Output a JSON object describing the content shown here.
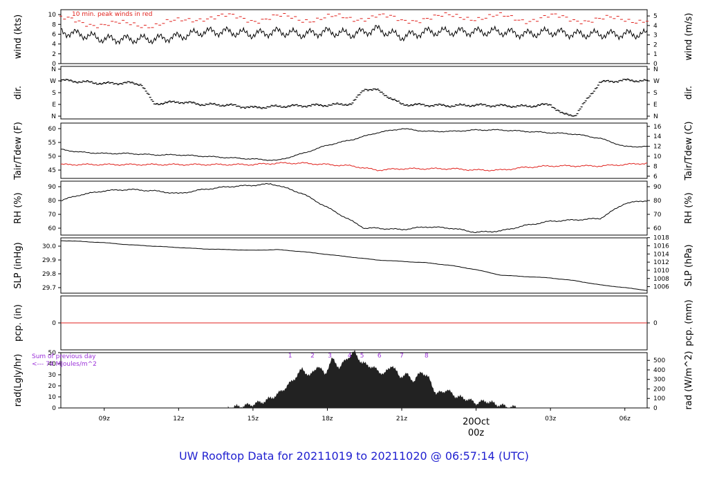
{
  "footer_title": "UW Rooftop Data for 20211019  to  20211020 @ 06:57:14  (UTC)",
  "colors": {
    "line": "#000000",
    "red": "#e0211c",
    "purple": "#9b30d9",
    "title": "#1f1fd0",
    "fill": "#222222"
  },
  "time_axis": {
    "ticks": [
      "09z",
      "12z",
      "15z",
      "18z",
      "21z",
      "00z",
      "03z",
      "06z"
    ],
    "date_label": "20Oct",
    "date_sub": "00z"
  },
  "chart_data": [
    {
      "id": "wind",
      "type": "line",
      "ylabel_left": "wind (kts)",
      "ylabel_right": "wind (m/s)",
      "ylim": [
        0,
        11
      ],
      "ticks_left": [
        0,
        2,
        4,
        6,
        8,
        10
      ],
      "ticks_right": [
        0,
        1,
        2,
        3,
        4,
        5
      ],
      "annotation": "10 min. peak winds in red",
      "series": [
        {
          "x": [
            7.25,
            8,
            9,
            10,
            11,
            12,
            13,
            14,
            15,
            16,
            17,
            18,
            19,
            20,
            21,
            22,
            23,
            24,
            25,
            26,
            27,
            28,
            29,
            30.9
          ],
          "y": [
            6.5,
            6.0,
            5.0,
            5.0,
            5.0,
            5.5,
            6.5,
            6.5,
            6.0,
            6.5,
            6.0,
            6.5,
            6.0,
            7.0,
            5.5,
            6.5,
            6.5,
            6.5,
            6.5,
            6.0,
            6.5,
            6.0,
            6.0,
            6.0
          ]
        },
        {
          "x": [
            7.25,
            8,
            9,
            10,
            11,
            12,
            13,
            14,
            15,
            16,
            17,
            18,
            19,
            20,
            21,
            22,
            23,
            24,
            25,
            26,
            27,
            28,
            29,
            30.9
          ],
          "y": [
            9.0,
            8.5,
            8.0,
            8.0,
            8.0,
            8.5,
            9.5,
            9.5,
            9.0,
            9.5,
            9.0,
            9.5,
            9.0,
            10.0,
            8.5,
            9.5,
            9.5,
            9.5,
            9.5,
            9.0,
            9.5,
            9.0,
            9.0,
            9.0
          ]
        }
      ]
    },
    {
      "id": "dir",
      "type": "scatter",
      "ylabel_left": "dir.",
      "ylabel_right": "dir.",
      "ylim": [
        0,
        360
      ],
      "ticks_left": [
        "N",
        "E",
        "S",
        "W",
        "N"
      ],
      "ticks_right": [
        "N",
        "E",
        "S",
        "W",
        "N"
      ],
      "series": [
        {
          "x": [
            7.25,
            8,
            9,
            10,
            10.5,
            11,
            12,
            13,
            14,
            15,
            16,
            17,
            18,
            19,
            19.5,
            20,
            21,
            22,
            23,
            24,
            25,
            26,
            27,
            27.5,
            28,
            29,
            30,
            30.9
          ],
          "y": [
            275,
            265,
            250,
            255,
            245,
            95,
            110,
            90,
            85,
            65,
            75,
            80,
            85,
            95,
            210,
            200,
            90,
            85,
            80,
            85,
            80,
            75,
            90,
            15,
            5,
            260,
            275,
            270
          ]
        }
      ]
    },
    {
      "id": "temp",
      "type": "line",
      "ylabel_left": "Tair/Tdew (F)",
      "ylabel_right": "Tair/Tdew (C)",
      "ylim": [
        42,
        62
      ],
      "ticks_left": [
        45,
        50,
        55,
        60
      ],
      "ticks_right": [
        6,
        8,
        10,
        12,
        14,
        16
      ],
      "series": [
        {
          "x": [
            7.25,
            8,
            9,
            10,
            11,
            12,
            13,
            14,
            15,
            16,
            17,
            18,
            19,
            20,
            21,
            22,
            23,
            24,
            25,
            26,
            27,
            28,
            29,
            30,
            30.9
          ],
          "y": [
            52.5,
            51.5,
            51,
            51,
            50.5,
            50.5,
            50,
            49.5,
            49,
            48.5,
            51,
            54,
            56,
            58.5,
            60,
            59,
            59,
            59.5,
            59.5,
            59,
            58.5,
            58,
            56.5,
            53.5,
            53.5
          ]
        },
        {
          "x": [
            7.25,
            8,
            9,
            10,
            11,
            12,
            13,
            14,
            15,
            16,
            17,
            18,
            19,
            20,
            21,
            22,
            23,
            24,
            25,
            26,
            27,
            28,
            29,
            30,
            30.9
          ],
          "y": [
            47,
            47,
            47,
            47,
            47,
            47,
            47,
            47,
            47,
            47.5,
            47.5,
            47,
            46.5,
            45,
            45.5,
            45.5,
            45.5,
            45,
            45,
            46,
            46.5,
            46.5,
            46.5,
            47,
            47.5
          ]
        }
      ]
    },
    {
      "id": "rh",
      "type": "line",
      "ylabel_left": "RH (%)",
      "ylabel_right": "RH (%)",
      "ylim": [
        55,
        94
      ],
      "ticks_left": [
        60,
        70,
        80,
        90
      ],
      "ticks_right": [
        60,
        70,
        80,
        90
      ],
      "series": [
        {
          "x": [
            7.25,
            8,
            9,
            10,
            11,
            12,
            13,
            14,
            15,
            15.7,
            16,
            17,
            18,
            19,
            19.5,
            20,
            21,
            22,
            23,
            24,
            25,
            26,
            27,
            28,
            29,
            30,
            30.9
          ],
          "y": [
            80,
            84,
            87,
            88,
            87,
            85,
            88,
            90,
            91,
            92,
            91,
            85,
            75,
            65,
            60,
            60,
            59,
            61,
            60,
            57,
            58,
            62,
            65,
            66,
            67,
            78,
            80
          ]
        }
      ]
    },
    {
      "id": "slp",
      "type": "line",
      "ylabel_left": "SLP (inHg)",
      "ylabel_right": "SLP (hPa)",
      "ylim": [
        29.66,
        30.06
      ],
      "ticks_left": [
        "29.7",
        "29.8",
        "29.9",
        "30.0"
      ],
      "ticks_right": [
        1006,
        1008,
        1010,
        1012,
        1014,
        1016,
        1018
      ],
      "series": [
        {
          "x": [
            7.25,
            8,
            9,
            10,
            11,
            12,
            13,
            14,
            15,
            16,
            17,
            18,
            19,
            20,
            21,
            22,
            23,
            24,
            25,
            26,
            27,
            28,
            29,
            30,
            30.9
          ],
          "y": [
            30.04,
            30.035,
            30.025,
            30.01,
            30.0,
            29.99,
            29.98,
            29.975,
            29.97,
            29.975,
            29.96,
            29.94,
            29.92,
            29.9,
            29.89,
            29.88,
            29.86,
            29.83,
            29.79,
            29.78,
            29.77,
            29.75,
            29.72,
            29.7,
            29.68
          ]
        }
      ]
    },
    {
      "id": "pcp",
      "type": "line",
      "ylabel_left": "pcp. (in)",
      "ylabel_right": "pcp. (mm)",
      "ticks_left": [
        0
      ],
      "ticks_right": [
        0
      ],
      "series": [
        {
          "x": [
            7.25,
            30.9
          ],
          "y": [
            0,
            0
          ]
        }
      ]
    },
    {
      "id": "rad",
      "type": "area",
      "ylabel_left": "rad(Lgly/hr)",
      "ylabel_right": "rad (W/m^2)",
      "ylim": [
        0,
        50
      ],
      "ticks_left": [
        0,
        10,
        20,
        30,
        40,
        50
      ],
      "ticks_right": [
        0,
        100,
        200,
        300,
        400,
        500
      ],
      "annotation_lines": [
        "Sum of previous day",
        "<--- 74 MJoules/m^2"
      ],
      "markers": [
        {
          "label": "1",
          "x": 16.5
        },
        {
          "label": "2",
          "x": 17.4
        },
        {
          "label": "3",
          "x": 18.1
        },
        {
          "label": "4",
          "x": 18.9
        },
        {
          "label": "5",
          "x": 19.4
        },
        {
          "label": "6",
          "x": 20.1
        },
        {
          "label": "7",
          "x": 21.0
        },
        {
          "label": "8",
          "x": 22.0
        }
      ],
      "series": [
        {
          "x": [
            14.0,
            14.5,
            15.0,
            15.5,
            16.0,
            16.5,
            17.0,
            17.3,
            17.6,
            17.9,
            18.2,
            18.5,
            18.8,
            19.1,
            19.4,
            19.7,
            20.0,
            20.3,
            20.6,
            20.9,
            21.2,
            21.5,
            21.8,
            22.1,
            22.4,
            22.8,
            23.2,
            23.6,
            24.0,
            24.4,
            24.8,
            25.2,
            25.6
          ],
          "y": [
            0,
            1,
            3,
            6,
            12,
            22,
            35,
            28,
            38,
            30,
            44,
            36,
            45,
            50,
            40,
            38,
            34,
            30,
            39,
            28,
            30,
            24,
            33,
            26,
            12,
            16,
            10,
            8,
            4,
            6,
            3,
            1,
            0
          ]
        }
      ]
    }
  ]
}
